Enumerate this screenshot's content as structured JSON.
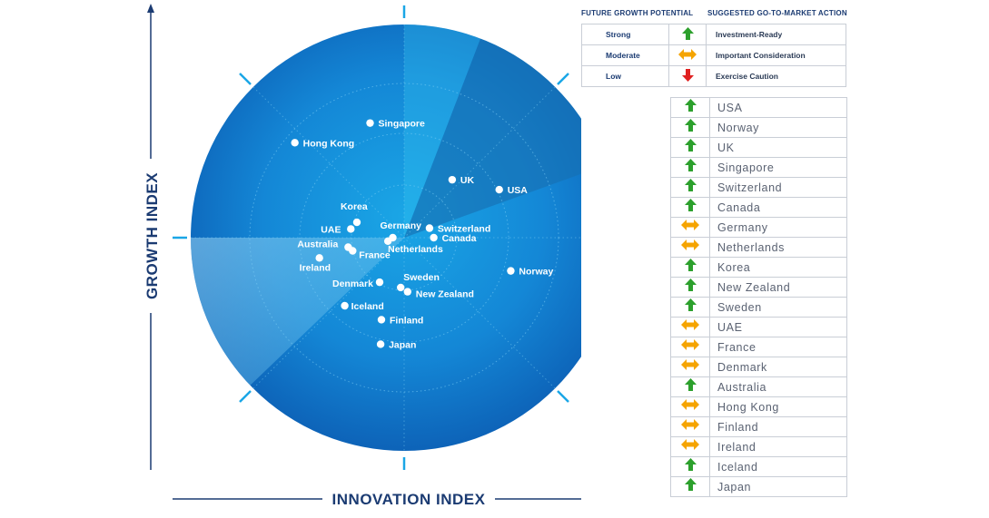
{
  "chart_data": {
    "type": "scatter",
    "title": "",
    "xlabel": "INNOVATION INDEX",
    "ylabel": "GROWTH INDEX",
    "xlim": [
      -10,
      10
    ],
    "ylim": [
      -10,
      10
    ],
    "points": [
      {
        "label": "Singapore",
        "x": -1.68,
        "y": 5.66
      },
      {
        "label": "Hong Kong",
        "x": -5.39,
        "y": 4.69
      },
      {
        "label": "UK",
        "x": 2.37,
        "y": 2.86
      },
      {
        "label": "USA",
        "x": 4.69,
        "y": 2.37
      },
      {
        "label": "Korea",
        "x": -2.33,
        "y": 0.76
      },
      {
        "label": "UAE",
        "x": -2.63,
        "y": 0.43
      },
      {
        "label": "Germany",
        "x": -0.56,
        "y": 0.0
      },
      {
        "label": "Switzerland",
        "x": 1.25,
        "y": 0.47
      },
      {
        "label": "Netherlands",
        "x": -0.8,
        "y": -0.17
      },
      {
        "label": "Canada",
        "x": 1.46,
        "y": -0.0
      },
      {
        "label": "Australia",
        "x": -2.76,
        "y": -0.47
      },
      {
        "label": "France",
        "x": -2.54,
        "y": -0.65
      },
      {
        "label": "Ireland",
        "x": -4.18,
        "y": -1.0
      },
      {
        "label": "Norway",
        "x": 5.26,
        "y": -1.64
      },
      {
        "label": "Denmark",
        "x": -1.21,
        "y": -2.2
      },
      {
        "label": "Sweden",
        "x": -0.17,
        "y": -2.46
      },
      {
        "label": "New Zealand",
        "x": 0.17,
        "y": -2.67
      },
      {
        "label": "Iceland",
        "x": -2.93,
        "y": -3.36
      },
      {
        "label": "Finland",
        "x": -1.12,
        "y": -4.05
      },
      {
        "label": "Japan",
        "x": -1.16,
        "y": -5.26
      }
    ]
  },
  "legend": {
    "col1_header": "FUTURE GROWTH POTENTIAL",
    "col2_header": "SUGGESTED GO-TO-MARKET ACTION",
    "rows": [
      {
        "potential": "Strong",
        "icon": "up-arrow-green",
        "color": "#2ca02c",
        "action": "Investment-Ready"
      },
      {
        "potential": "Moderate",
        "icon": "double-arrow-orange",
        "color": "#f5a400",
        "action": "Important Consideration"
      },
      {
        "potential": "Low",
        "icon": "down-arrow-red",
        "color": "#e02020",
        "action": "Exercise Caution"
      }
    ]
  },
  "ranking": [
    {
      "country": "USA",
      "icon": "up"
    },
    {
      "country": "Norway",
      "icon": "up"
    },
    {
      "country": "UK",
      "icon": "up"
    },
    {
      "country": "Singapore",
      "icon": "up"
    },
    {
      "country": "Switzerland",
      "icon": "up"
    },
    {
      "country": "Canada",
      "icon": "up"
    },
    {
      "country": "Germany",
      "icon": "both"
    },
    {
      "country": "Netherlands",
      "icon": "both"
    },
    {
      "country": "Korea",
      "icon": "up"
    },
    {
      "country": "New Zealand",
      "icon": "up"
    },
    {
      "country": "Sweden",
      "icon": "up"
    },
    {
      "country": "UAE",
      "icon": "both"
    },
    {
      "country": "France",
      "icon": "both"
    },
    {
      "country": "Denmark",
      "icon": "both"
    },
    {
      "country": "Australia",
      "icon": "up"
    },
    {
      "country": "Hong Kong",
      "icon": "both"
    },
    {
      "country": "Finland",
      "icon": "both"
    },
    {
      "country": "Ireland",
      "icon": "both"
    },
    {
      "country": "Iceland",
      "icon": "up"
    },
    {
      "country": "Japan",
      "icon": "up"
    }
  ]
}
